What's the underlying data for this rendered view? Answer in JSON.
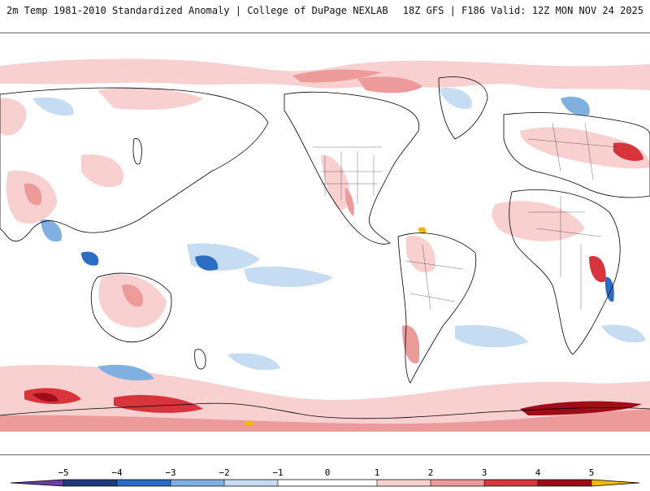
{
  "header": {
    "title": "2m Temp 1981-2010 Standardized Anomaly | College of DuPage NEXLAB",
    "run_info": "18Z GFS | F186 Valid: 12Z MON NOV 24 2025"
  },
  "map": {
    "product": "2m temperature standardized anomaly"
  },
  "colorbar": {
    "ticks": [
      "−5",
      "−4",
      "−3",
      "−2",
      "−1",
      "0",
      "1",
      "2",
      "3",
      "4",
      "5"
    ],
    "colors": {
      "lt_m5": "#6b3fa0",
      "m5_m4": "#1f3a7a",
      "m4_m3": "#2b6cc4",
      "m3_m2": "#7fb0e0",
      "m2_m1": "#c6dcf2",
      "m1_p1": "#ffffff",
      "p1_p2": "#f8d0d0",
      "p2_p3": "#ec9a9a",
      "p3_p4": "#d8343c",
      "p4_p5": "#9e0c18",
      "gt_p5": "#f0b800"
    }
  }
}
